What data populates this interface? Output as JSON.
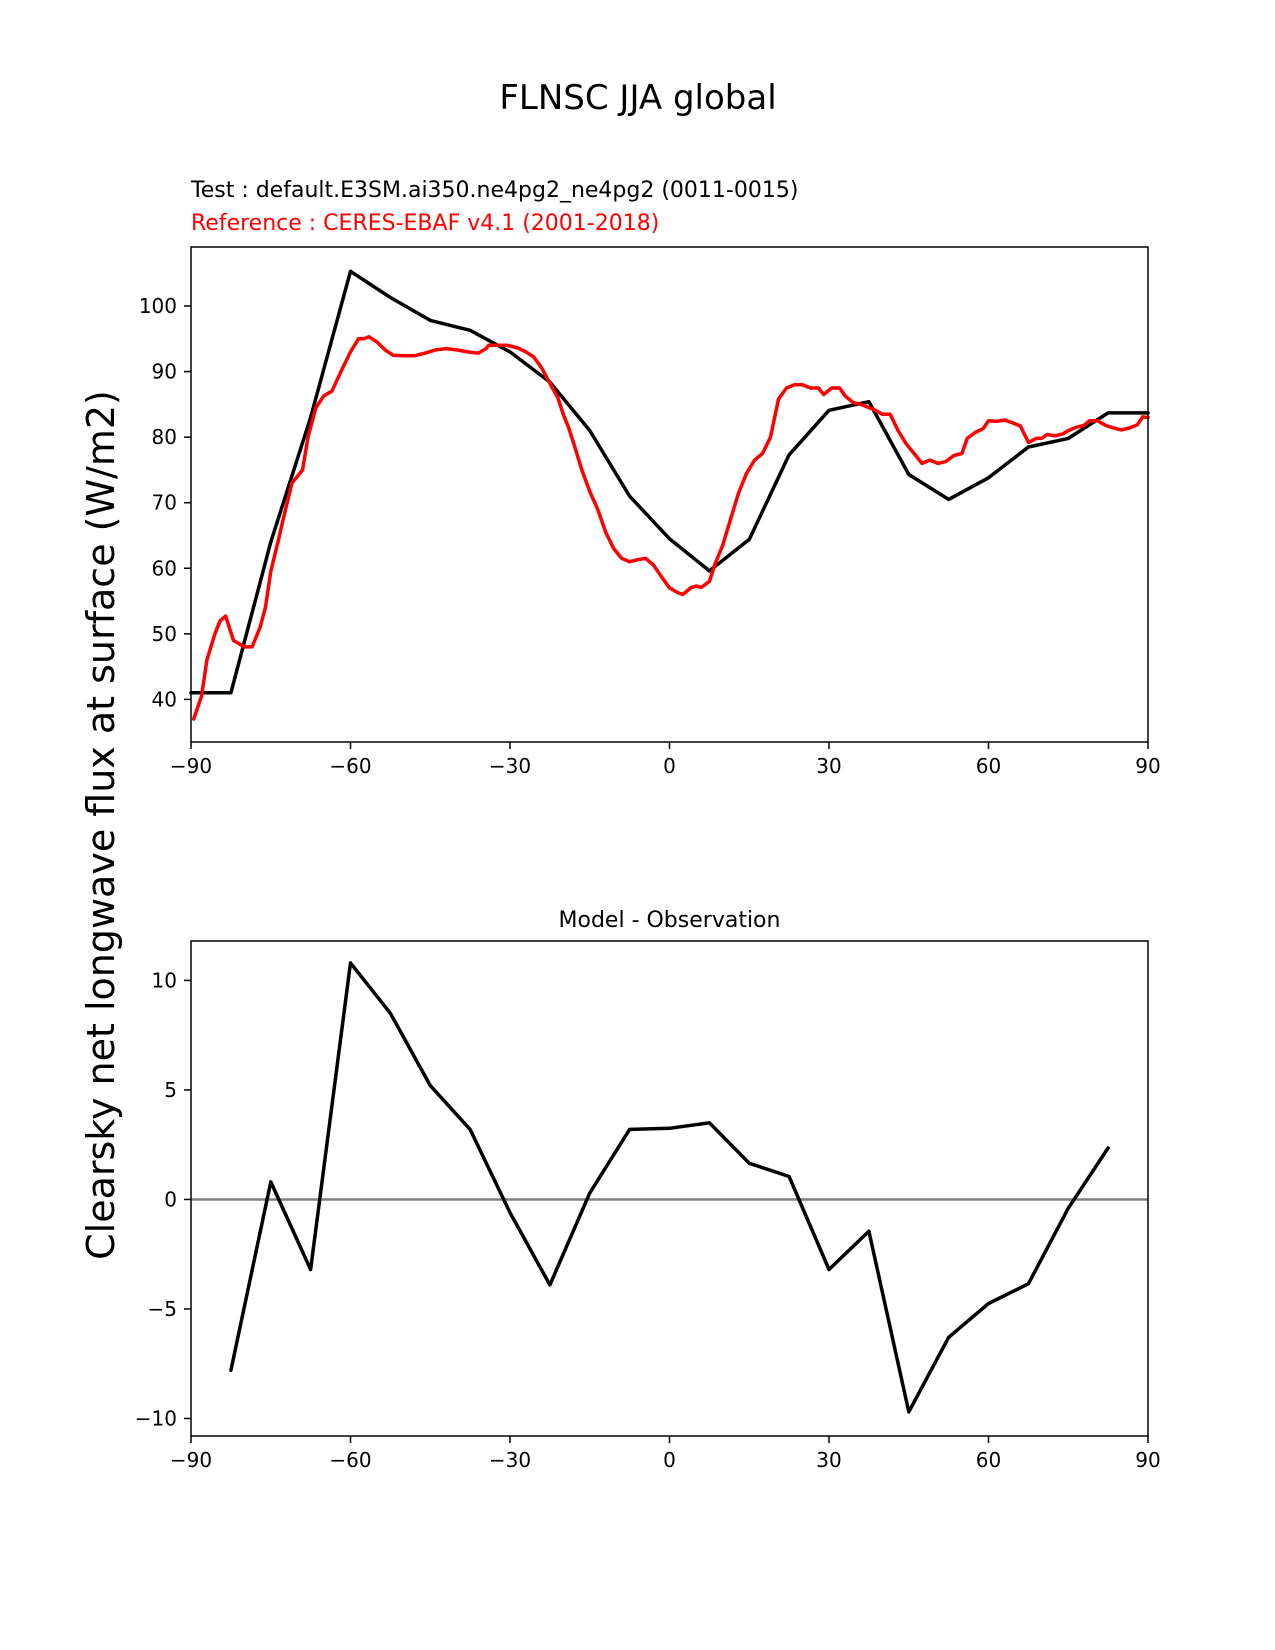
{
  "figure": {
    "title": "FLNSC JJA global",
    "colors": {
      "test": "#000000",
      "reference": "#ff0000",
      "zero_line": "#808080"
    }
  },
  "chart_data": [
    {
      "type": "line",
      "test_label": "Test : default.E3SM.ai350.ne4pg2_ne4pg2 (0011-0015)",
      "reference_label": "Reference : CERES-EBAF v4.1 (2001-2018)",
      "ylabel": "Clearsky net longwave flux at surface (W/m2)",
      "xlim": [
        -90,
        90
      ],
      "ylim": [
        33.5,
        109
      ],
      "xticks": [
        -90,
        -60,
        -30,
        0,
        30,
        60,
        90
      ],
      "xtick_labels": [
        "−90",
        "−60",
        "−30",
        "0",
        "30",
        "60",
        "90"
      ],
      "yticks": [
        40,
        50,
        60,
        70,
        80,
        90,
        100
      ],
      "ytick_labels": [
        "40",
        "50",
        "60",
        "70",
        "80",
        "90",
        "100"
      ],
      "series": [
        {
          "key": "test",
          "x": [
            -90,
            -82.5,
            -75,
            -67.5,
            -60,
            -52.5,
            -45,
            -37.5,
            -30,
            -22.5,
            -15,
            -7.5,
            0,
            7.5,
            15,
            22.5,
            30,
            37.5,
            45,
            52.5,
            60,
            67.5,
            75,
            82.5,
            90
          ],
          "y": [
            41,
            41,
            64,
            83,
            105.3,
            101.3,
            97.8,
            96.3,
            93,
            88.4,
            81,
            71,
            64.5,
            59.6,
            64.4,
            77.3,
            84.1,
            85.4,
            74.3,
            70.5,
            73.8,
            78.5,
            79.8,
            83.7,
            83.7
          ]
        },
        {
          "key": "reference",
          "x": [
            -89.5,
            -88,
            -87,
            -85.5,
            -84.5,
            -83.5,
            -82,
            -80,
            -78.5,
            -77,
            -76,
            -75,
            -73.5,
            -72.5,
            -71,
            -69,
            -68,
            -66.5,
            -65,
            -63.5,
            -61.5,
            -60,
            -58.5,
            -57.5,
            -56.5,
            -55,
            -53.5,
            -52,
            -50,
            -48,
            -46,
            -44,
            -42,
            -40,
            -38,
            -36,
            -34.5,
            -34,
            -32.5,
            -30.5,
            -28.5,
            -27,
            -25.5,
            -24,
            -22.5,
            -21,
            -20,
            -19,
            -18,
            -16.5,
            -15,
            -13.5,
            -12,
            -10.5,
            -9,
            -7.5,
            -6,
            -4.5,
            -3,
            -1.5,
            0,
            1.5,
            2.5,
            4,
            5,
            6,
            7.5,
            8.5,
            10,
            11.5,
            13,
            14.5,
            16,
            17.5,
            19,
            20.5,
            22,
            23.5,
            25,
            26.5,
            28,
            29,
            30.5,
            32,
            33,
            34.5,
            36,
            37.5,
            38.5,
            40,
            41.5,
            43,
            44.5,
            46,
            47.5,
            49,
            50.5,
            52,
            53.5,
            55,
            56,
            57.5,
            59,
            60,
            61.5,
            63,
            64.5,
            66,
            67.5,
            69,
            70,
            71,
            72.5,
            74,
            75,
            76.5,
            78,
            79,
            80.5,
            82,
            83.5,
            85,
            86.5,
            88,
            89,
            90
          ],
          "y": [
            37,
            40.5,
            46,
            50,
            52,
            52.7,
            49,
            48,
            48,
            51,
            54,
            59.5,
            64.5,
            68,
            73,
            75,
            80,
            84.5,
            86.3,
            87,
            90.5,
            93,
            95,
            95,
            95.3,
            94.5,
            93.3,
            92.5,
            92.4,
            92.4,
            92.8,
            93.3,
            93.5,
            93.3,
            93,
            92.8,
            93.5,
            94,
            94,
            94,
            93.6,
            93,
            92.2,
            90.5,
            88.2,
            86,
            83.5,
            81.5,
            79,
            75,
            71.7,
            69,
            65.5,
            63,
            61.5,
            61,
            61.3,
            61.5,
            60.5,
            58.7,
            57,
            56.3,
            56,
            57,
            57.3,
            57.1,
            58,
            60.5,
            63.5,
            67.5,
            71.5,
            74.5,
            76.5,
            77.5,
            80,
            85.8,
            87.5,
            88,
            88,
            87.5,
            87.5,
            86.5,
            87.5,
            87.5,
            86.3,
            85.3,
            85,
            84.5,
            84.2,
            83.5,
            83.5,
            81,
            79,
            77.5,
            76,
            76.5,
            76,
            76.3,
            77.2,
            77.5,
            79.8,
            80.7,
            81.3,
            82.5,
            82.4,
            82.6,
            82.2,
            81.7,
            79.2,
            79.8,
            79.8,
            80.4,
            80.2,
            80.5,
            81,
            81.5,
            81.8,
            82.5,
            82.5,
            81.8,
            81.4,
            81.1,
            81.4,
            81.9,
            83.1,
            83
          ]
        }
      ]
    },
    {
      "type": "line",
      "title": "Model - Observation",
      "xlim": [
        -90,
        90
      ],
      "ylim": [
        -10.8,
        11.8
      ],
      "xticks": [
        -90,
        -60,
        -30,
        0,
        30,
        60,
        90
      ],
      "xtick_labels": [
        "−90",
        "−60",
        "−30",
        "0",
        "30",
        "60",
        "90"
      ],
      "yticks": [
        -10,
        -5,
        0,
        5,
        10
      ],
      "ytick_labels": [
        "−10",
        "−5",
        "0",
        "5",
        "10"
      ],
      "zero_line": 0,
      "series": [
        {
          "key": "difference",
          "x": [
            -82.5,
            -75,
            -67.5,
            -60,
            -52.5,
            -45,
            -37.5,
            -30,
            -22.5,
            -15,
            -7.5,
            0,
            7.5,
            15,
            22.5,
            30,
            37.5,
            45,
            52.5,
            60,
            67.5,
            75,
            82.5
          ],
          "y": [
            -7.8,
            0.8,
            -3.2,
            10.8,
            8.5,
            5.2,
            3.2,
            -0.6,
            -3.9,
            0.3,
            3.2,
            3.25,
            3.5,
            1.65,
            1.05,
            -3.2,
            -1.45,
            -9.7,
            -6.3,
            -4.75,
            -3.85,
            -0.4,
            2.35
          ]
        }
      ]
    }
  ]
}
